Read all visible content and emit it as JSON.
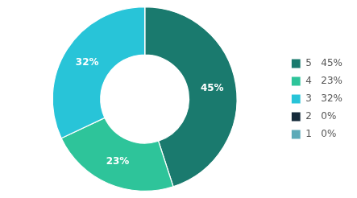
{
  "chart_data": {
    "type": "doughnut",
    "categories": [
      "5   45%",
      "4   23%",
      "3   32%",
      "2   0%",
      "1   0%"
    ],
    "values": [
      45,
      23,
      32,
      0.001,
      0.001
    ],
    "value_labels": [
      "45%",
      "23%",
      "32%",
      null,
      null
    ],
    "data_labels": true,
    "colors": [
      "#1a7a6e",
      "#2ec49a",
      "#28c4d8",
      "#152a3a",
      "#5baab8"
    ],
    "legend": "right"
  }
}
